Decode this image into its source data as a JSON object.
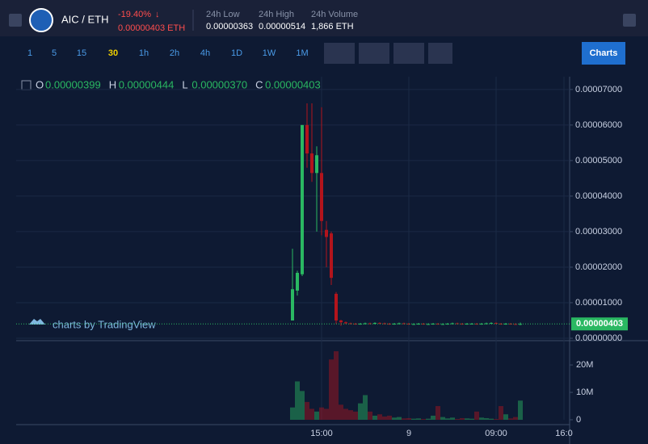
{
  "header": {
    "pair": "AIC / ETH",
    "change": "-19.40%",
    "price": "0.00000403 ETH",
    "stats": [
      {
        "label": "24h Low",
        "value": "0.00000363"
      },
      {
        "label": "24h High",
        "value": "0.00000514"
      },
      {
        "label": "24h Volume",
        "value": "1,866 ETH"
      }
    ]
  },
  "toolbar": {
    "intervals": [
      "1",
      "5",
      "15",
      "30",
      "1h",
      "2h",
      "4h",
      "1D",
      "1W",
      "1M"
    ],
    "active_interval": 3,
    "button": "Charts"
  },
  "watermark": "charts by TradingView",
  "chart_data": {
    "type": "candlestick",
    "categories": [
      null,
      null,
      null,
      null,
      null,
      null,
      "15:00",
      null,
      null,
      null,
      null,
      null,
      null,
      null,
      null,
      null,
      null,
      null,
      null,
      null,
      null,
      null,
      null,
      null,
      "9",
      null,
      null,
      null,
      null,
      null,
      null,
      null,
      null,
      null,
      null,
      null,
      null,
      null,
      null,
      null,
      null,
      null,
      "09:00",
      null,
      null,
      null,
      null,
      null,
      null,
      null,
      null,
      null,
      null,
      null,
      null,
      null,
      "16:0"
    ],
    "open": [
      5e-06,
      1.34e-05,
      1.8e-05,
      6e-05,
      5.2e-05,
      4.65e-05,
      4.65e-05,
      3.05e-05,
      2.95e-05,
      1.25e-05,
      5e-06,
      4.5e-06,
      4.2e-06,
      4.1e-06,
      4e-06,
      4.1e-06,
      4.2e-06,
      4.1e-06,
      4.3e-06,
      4.2e-06,
      4.1e-06,
      4e-06,
      4.1e-06,
      4.2e-06,
      4.1e-06,
      4e-06,
      4e-06,
      4.1e-06,
      4e-06,
      4e-06,
      4.1e-06,
      4e-06,
      4e-06,
      4.1e-06,
      4.2e-06,
      4.1e-06,
      4e-06,
      4.1e-06,
      4.1e-06,
      4e-06,
      4.1e-06,
      4.2e-06,
      4.3e-06,
      4.1e-06,
      4e-06,
      4.1e-06,
      4e-06,
      3.99e-06,
      null,
      null,
      null,
      null,
      null,
      null,
      null,
      null,
      null
    ],
    "high": [
      2.52e-05,
      1.9e-05,
      6e-05,
      6.61e-05,
      6.61e-05,
      5.4e-05,
      6.5e-05,
      3.3e-05,
      3e-05,
      1.3e-05,
      5.2e-06,
      4.7e-06,
      4.4e-06,
      4.3e-06,
      4.3e-06,
      4.4e-06,
      4.4e-06,
      4.5e-06,
      4.5e-06,
      4.4e-06,
      4.3e-06,
      4.3e-06,
      4.4e-06,
      4.4e-06,
      4.3e-06,
      4.2e-06,
      4.3e-06,
      4.3e-06,
      4.2e-06,
      4.3e-06,
      4.3e-06,
      4.2e-06,
      4.3e-06,
      4.4e-06,
      4.4e-06,
      4.3e-06,
      4.3e-06,
      4.3e-06,
      4.3e-06,
      4.3e-06,
      4.4e-06,
      4.5e-06,
      4.5e-06,
      4.3e-06,
      4.3e-06,
      4.3e-06,
      4.2e-06,
      4.44e-06,
      null,
      null,
      null,
      null,
      null,
      null,
      null,
      null,
      null
    ],
    "low": [
      5e-06,
      1.2e-05,
      1.75e-05,
      4.8e-05,
      4.4e-05,
      3e-05,
      2.9e-05,
      2e-05,
      1.5e-05,
      4e-06,
      3.5e-06,
      4e-06,
      3.9e-06,
      3.8e-06,
      3.8e-06,
      3.9e-06,
      3.9e-06,
      3.9e-06,
      4e-06,
      3.9e-06,
      3.8e-06,
      3.8e-06,
      3.9e-06,
      3.9e-06,
      3.8e-06,
      3.8e-06,
      3.8e-06,
      3.8e-06,
      3.8e-06,
      3.8e-06,
      3.8e-06,
      3.8e-06,
      3.8e-06,
      3.9e-06,
      3.9e-06,
      3.8e-06,
      3.8e-06,
      3.9e-06,
      3.8e-06,
      3.8e-06,
      3.9e-06,
      4e-06,
      3.9e-06,
      3.8e-06,
      3.8e-06,
      3.8e-06,
      3.79e-06,
      3.7e-06,
      null,
      null,
      null,
      null,
      null,
      null,
      null,
      null,
      null
    ],
    "close": [
      1.38e-05,
      1.84e-05,
      6e-05,
      5.2e-05,
      4.65e-05,
      5.15e-05,
      3.3e-05,
      2.85e-05,
      1.7e-05,
      5e-06,
      4.5e-06,
      4.2e-06,
      4.1e-06,
      4e-06,
      4.1e-06,
      4.2e-06,
      4.1e-06,
      4.3e-06,
      4.2e-06,
      4.1e-06,
      4e-06,
      4.1e-06,
      4.2e-06,
      4.1e-06,
      4e-06,
      4e-06,
      4.1e-06,
      4e-06,
      4e-06,
      4.1e-06,
      4e-06,
      4e-06,
      4.1e-06,
      4.2e-06,
      4.1e-06,
      4e-06,
      4.1e-06,
      4.1e-06,
      4e-06,
      4.1e-06,
      4.2e-06,
      4.3e-06,
      4.1e-06,
      4e-06,
      4.1e-06,
      4e-06,
      3.99e-06,
      4.03e-06,
      null,
      null,
      null,
      null,
      null,
      null,
      null,
      null,
      null
    ],
    "ohlc_legend": [
      {
        "letter": "O",
        "text": "0.00000399"
      },
      {
        "letter": "H",
        "text": "0.00000444"
      },
      {
        "letter": "L",
        "text": "0.00000370"
      },
      {
        "letter": "C",
        "text": "0.00000403"
      }
    ],
    "up_color": "#2ab862",
    "down_color": "#b3141c",
    "ylim": [
      0,
      7.36e-05
    ],
    "yticks": [
      {
        "value": 0,
        "label": "0.00000000"
      },
      {
        "value": 1e-05,
        "label": "0.00001000"
      },
      {
        "value": 2e-05,
        "label": "0.00002000"
      },
      {
        "value": 3e-05,
        "label": "0.00003000"
      },
      {
        "value": 4e-05,
        "label": "0.00004000"
      },
      {
        "value": 5e-05,
        "label": "0.00005000"
      },
      {
        "value": 6e-05,
        "label": "0.00006000"
      },
      {
        "value": 7e-05,
        "label": "0.00007000"
      }
    ],
    "grid": true,
    "volume": {
      "values": [
        4500000,
        14000000,
        10500000,
        6500000,
        4000000,
        3000000,
        4500000,
        4000000,
        22000000,
        25000000,
        5500000,
        4000000,
        3500000,
        3000000,
        6000000,
        9000000,
        3000000,
        1500000,
        2000000,
        1200000,
        1500000,
        800000,
        1000000,
        500000,
        600000,
        400000,
        500000,
        300000,
        400000,
        1500000,
        5000000,
        1000000,
        500000,
        800000,
        300000,
        600000,
        500000,
        400000,
        3000000,
        800000,
        600000,
        400000,
        300000,
        5000000,
        2000000,
        500000,
        1000000,
        7000000,
        null,
        null,
        null,
        null,
        null,
        null,
        null,
        null,
        null
      ],
      "ylim": [
        0,
        26500000
      ],
      "yticks": [
        0,
        {
          "value": 10000000,
          "label": "10M"
        },
        {
          "value": 20000000,
          "label": "20M"
        }
      ]
    }
  }
}
